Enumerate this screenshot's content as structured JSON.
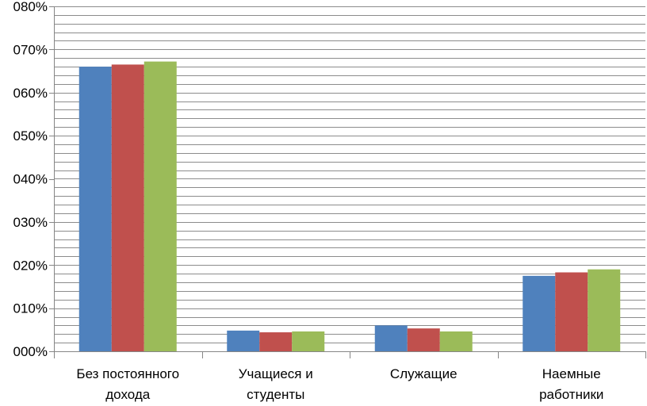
{
  "chart_data": {
    "type": "bar",
    "categories": [
      [
        "Без постоянного",
        "дохода"
      ],
      [
        "Учащиеся и",
        "студенты"
      ],
      [
        "Служащие"
      ],
      [
        "Наемные",
        "работники"
      ]
    ],
    "series": [
      {
        "color": "#4f81bd",
        "values": [
          0.066,
          0.0048,
          0.006,
          0.0175
        ]
      },
      {
        "color": "#c0504d",
        "values": [
          0.0665,
          0.0044,
          0.0053,
          0.0183
        ]
      },
      {
        "color": "#9bbb59",
        "values": [
          0.0672,
          0.0046,
          0.0046,
          0.019
        ]
      }
    ],
    "ylim": [
      0,
      0.08
    ],
    "yticks": [
      0,
      0.01,
      0.02,
      0.03,
      0.04,
      0.05,
      0.06,
      0.07,
      0.08
    ],
    "ytick_labels": [
      "000%",
      "010%",
      "020%",
      "030%",
      "040%",
      "050%",
      "060%",
      "070%",
      "080%"
    ],
    "grid": true,
    "title": "",
    "xlabel": "",
    "ylabel": ""
  }
}
